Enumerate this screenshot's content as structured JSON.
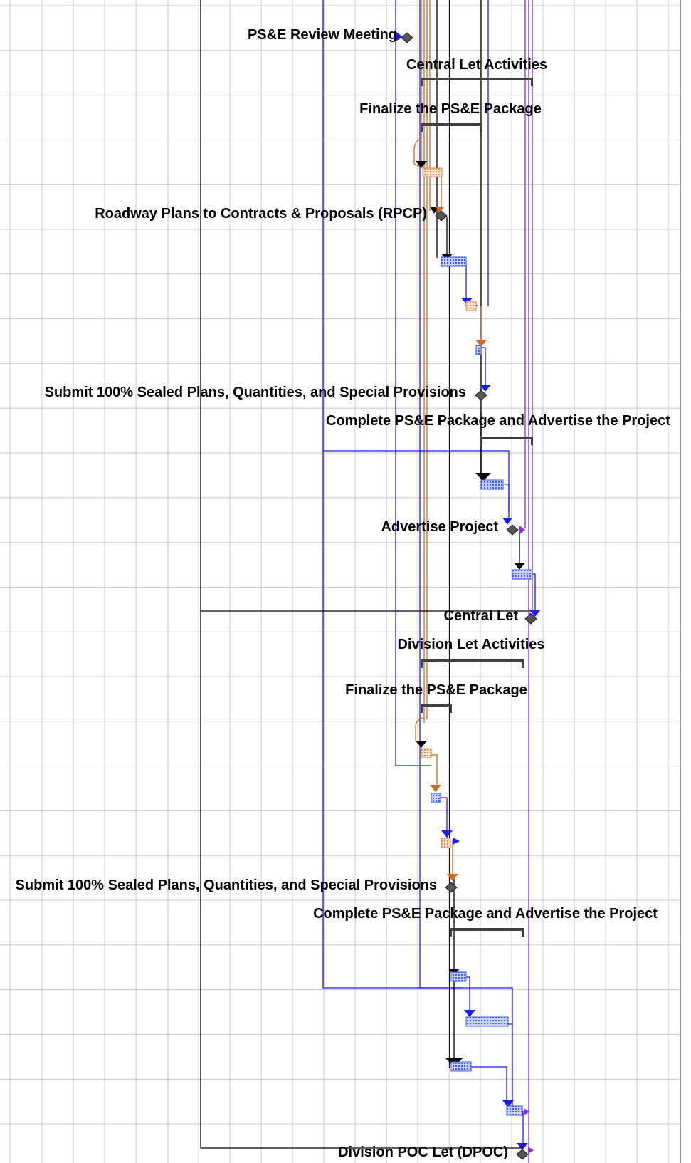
{
  "gantt": {
    "labels": {
      "psande_review_meeting": "PS&E Review Meeting",
      "central_let_activities": "Central Let Activities",
      "finalize_psande_package_1": "Finalize the PS&E Package",
      "roadway_plans_rpcp": "Roadway Plans to Contracts & Proposals (RPCP)",
      "submit_sealed_1": "Submit 100% Sealed Plans, Quantities, and Special Provisions",
      "complete_psande_advertise_1": "Complete PS&E Package and Advertise the Project",
      "advertise_project": "Advertise Project",
      "central_let": "Central Let",
      "division_let_activities": "Division Let Activities",
      "finalize_psande_package_2": "Finalize the PS&E Package",
      "submit_sealed_2": "Submit 100% Sealed Plans, Quantities, and Special Provisions",
      "complete_psande_advertise_2": "Complete PS&E Package and Advertise the Project",
      "division_poc_let": "Division POC Let (DPOC)"
    },
    "colors": {
      "grid": "#c8c8c8",
      "link_blue": "#1a1aff",
      "link_orange": "#d2691e",
      "link_black": "#000000",
      "link_purple": "#8b2be2",
      "task_blue": "#3b5bff",
      "task_orange": "#e8874a",
      "summary_bar": "#404040",
      "milestone": "#555555"
    }
  }
}
